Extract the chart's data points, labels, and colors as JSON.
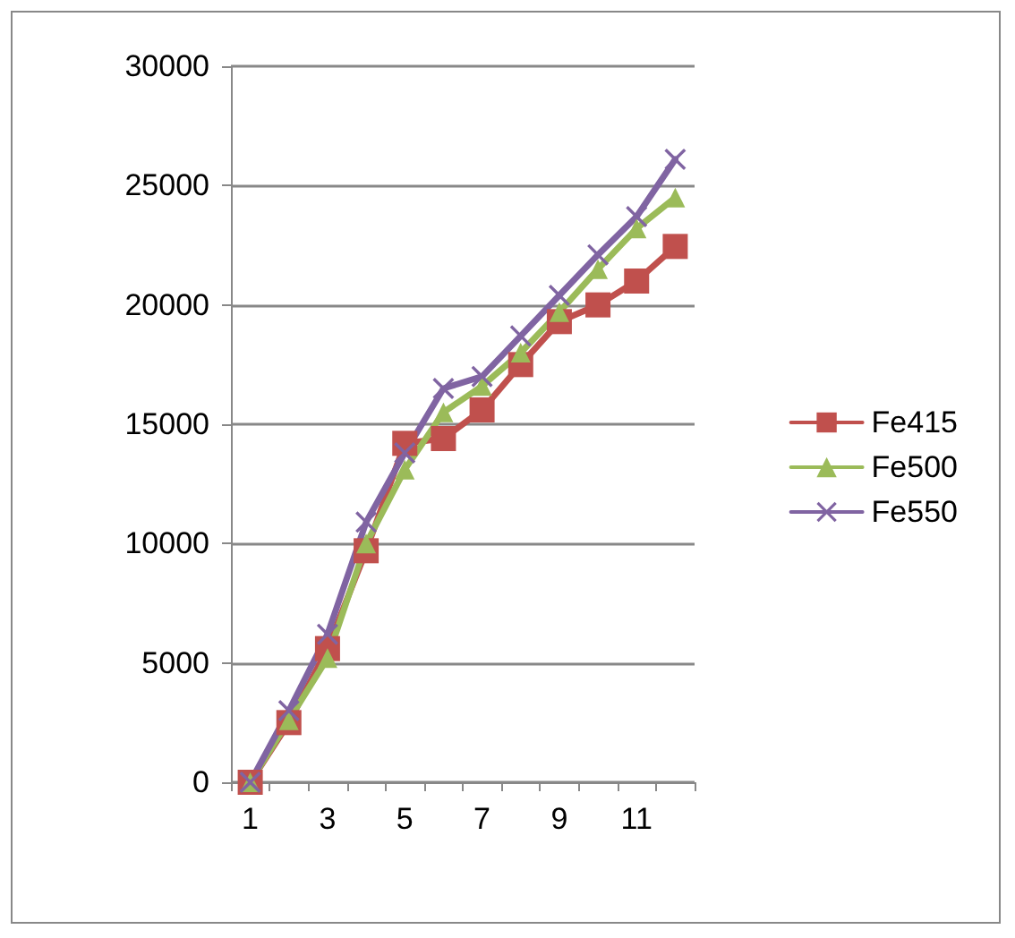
{
  "chart_data": {
    "type": "line",
    "categories": [
      "1",
      null,
      "3",
      null,
      "5",
      null,
      "7",
      null,
      "9",
      null,
      "11",
      null
    ],
    "series": [
      {
        "name": "Fe415",
        "color": "#c0504d",
        "marker": "square",
        "values": [
          0,
          2500,
          5600,
          9700,
          14200,
          14400,
          15600,
          17500,
          19300,
          20000,
          21000,
          22450
        ]
      },
      {
        "name": "Fe500",
        "color": "#9bbb59",
        "marker": "triangle",
        "values": [
          0,
          2600,
          5200,
          10000,
          13100,
          15500,
          16600,
          18000,
          19700,
          21500,
          23200,
          24500
        ]
      },
      {
        "name": "Fe550",
        "color": "#8064a2",
        "marker": "cross",
        "values": [
          0,
          3000,
          6200,
          10900,
          13800,
          16500,
          17000,
          18700,
          20400,
          22100,
          23700,
          26100
        ]
      }
    ],
    "ylim": [
      0,
      30000
    ],
    "yticks": [
      0,
      5000,
      10000,
      15000,
      20000,
      25000,
      30000
    ],
    "grid": "y",
    "legend": "right",
    "line_style": "solid"
  }
}
